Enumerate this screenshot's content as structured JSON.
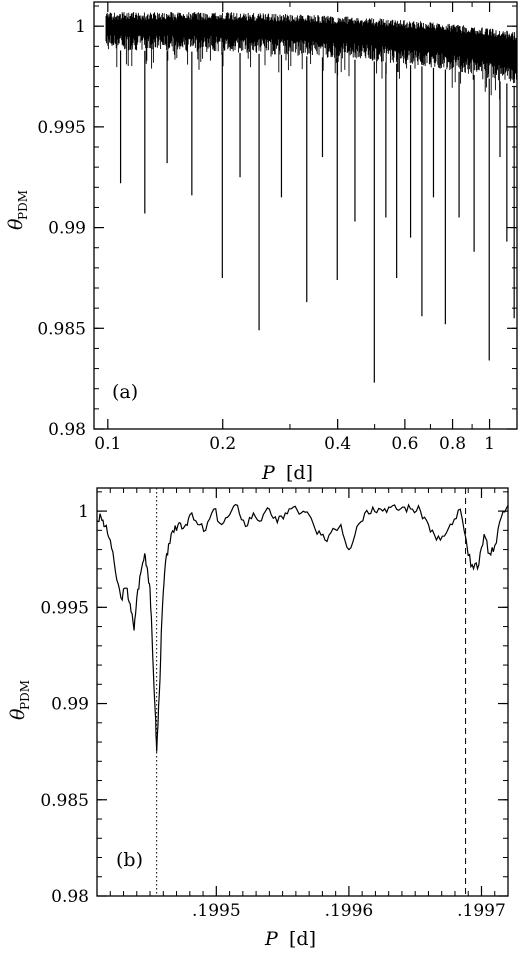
{
  "chart_data": [
    {
      "type": "line",
      "panel_label": "(a)",
      "xlabel_var": "P",
      "xlabel_unit": "[d]",
      "ylabel_symbol": "θ",
      "ylabel_sub": "PDM",
      "xscale": "log",
      "xlim": [
        0.092,
        1.18
      ],
      "ylim": [
        0.98,
        1.0012
      ],
      "xticks_major": [
        0.1,
        0.2,
        0.4,
        0.6,
        0.8,
        1
      ],
      "xtick_labels": [
        "0.1",
        "0.2",
        "0.4",
        "0.6",
        "0.8",
        "1"
      ],
      "yticks_major": [
        0.98,
        0.985,
        0.99,
        0.995,
        1
      ],
      "ytick_labels": [
        "0.98",
        "0.985",
        "0.99",
        "0.995",
        "1"
      ],
      "baseline_band": {
        "x": [
          0.1,
          0.2,
          0.4,
          0.6,
          0.8,
          1.0,
          1.18
        ],
        "upper": [
          1.0007,
          1.0007,
          1.0005,
          1.0003,
          1.0001,
          0.9999,
          0.9997
        ],
        "lower": [
          0.9988,
          0.9987,
          0.9984,
          0.9981,
          0.9978,
          0.9974,
          0.997
        ]
      },
      "dips": [
        {
          "x": 0.108,
          "y": 0.9922
        },
        {
          "x": 0.125,
          "y": 0.9907
        },
        {
          "x": 0.143,
          "y": 0.9932
        },
        {
          "x": 0.166,
          "y": 0.9916
        },
        {
          "x": 0.1995,
          "y": 0.9875
        },
        {
          "x": 0.222,
          "y": 0.9925
        },
        {
          "x": 0.249,
          "y": 0.9849
        },
        {
          "x": 0.285,
          "y": 0.9915
        },
        {
          "x": 0.332,
          "y": 0.9863
        },
        {
          "x": 0.365,
          "y": 0.9935
        },
        {
          "x": 0.399,
          "y": 0.9874
        },
        {
          "x": 0.444,
          "y": 0.9903
        },
        {
          "x": 0.499,
          "y": 0.9823
        },
        {
          "x": 0.535,
          "y": 0.9905
        },
        {
          "x": 0.571,
          "y": 0.9875
        },
        {
          "x": 0.621,
          "y": 0.9895
        },
        {
          "x": 0.665,
          "y": 0.9856
        },
        {
          "x": 0.713,
          "y": 0.9915
        },
        {
          "x": 0.766,
          "y": 0.9852
        },
        {
          "x": 0.832,
          "y": 0.9905
        },
        {
          "x": 0.911,
          "y": 0.9888
        },
        {
          "x": 0.998,
          "y": 0.9834
        },
        {
          "x": 1.065,
          "y": 0.9935
        },
        {
          "x": 1.11,
          "y": 0.9893
        },
        {
          "x": 1.16,
          "y": 0.9855
        }
      ]
    },
    {
      "type": "line",
      "panel_label": "(b)",
      "xlabel_var": "P",
      "xlabel_unit": "[d]",
      "ylabel_symbol": "θ",
      "ylabel_sub": "PDM",
      "xlim": [
        0.19941,
        0.19972
      ],
      "ylim": [
        0.98,
        1.0012
      ],
      "xticks_major": [
        0.1995,
        0.1996,
        0.1997
      ],
      "xtick_labels": [
        ".1995",
        ".1996",
        ".1997"
      ],
      "yticks_major": [
        0.98,
        0.985,
        0.99,
        0.995,
        1
      ],
      "ytick_labels": [
        "0.98",
        "0.985",
        "0.99",
        "0.995",
        "1"
      ],
      "vlines": [
        {
          "x": 0.199455,
          "style": "dotted"
        },
        {
          "x": 0.199688,
          "style": "dashed"
        }
      ],
      "series": [
        {
          "x": [
            0.19941,
            0.199413,
            0.199416,
            0.19942,
            0.199424,
            0.199428,
            0.199432,
            0.199435,
            0.199438,
            0.19944,
            0.199443,
            0.199446,
            0.199448,
            0.19945,
            0.199452,
            0.199454,
            0.199455,
            0.199457,
            0.199459,
            0.199461,
            0.199464,
            0.199468,
            0.199472,
            0.199476,
            0.19948,
            0.199486,
            0.199492,
            0.199498,
            0.199504,
            0.19951,
            0.199516,
            0.199522,
            0.199528,
            0.199534,
            0.19954,
            0.199546,
            0.199552,
            0.199558,
            0.199564,
            0.19957,
            0.199576,
            0.199582,
            0.199588,
            0.199594,
            0.1996,
            0.199606,
            0.199612,
            0.199618,
            0.199624,
            0.19963,
            0.199636,
            0.199642,
            0.199648,
            0.199654,
            0.19966,
            0.199666,
            0.199672,
            0.199678,
            0.199684,
            0.19969,
            0.199694,
            0.199698,
            0.199702,
            0.199706,
            0.19971,
            0.199715,
            0.19972
          ],
          "y": [
            0.9995,
            0.9997,
            0.9992,
            0.9985,
            0.9968,
            0.9955,
            0.996,
            0.9952,
            0.9938,
            0.9955,
            0.9968,
            0.9978,
            0.997,
            0.996,
            0.9925,
            0.9895,
            0.9875,
            0.9905,
            0.9945,
            0.9968,
            0.9983,
            0.9989,
            0.9994,
            0.9992,
            0.9998,
            0.9993,
            0.999,
            1.0001,
            0.9993,
            0.9998,
            1.0003,
            0.9992,
            0.9999,
            0.9995,
            1.0001,
            0.9994,
            0.9999,
            1.0002,
            0.9999,
            0.9998,
            0.9988,
            0.9985,
            0.9991,
            0.9993,
            0.998,
            0.9992,
            0.9999,
            1.0002,
            1.0001,
            1.0002,
            1.0001,
            1.0002,
            1.0001,
            1.0,
            0.9993,
            0.9985,
            0.9987,
            0.9993,
            1.0001,
            0.9977,
            0.997,
            0.9972,
            0.9988,
            0.9978,
            0.9982,
            0.9997,
            1.0003
          ]
        }
      ]
    }
  ]
}
